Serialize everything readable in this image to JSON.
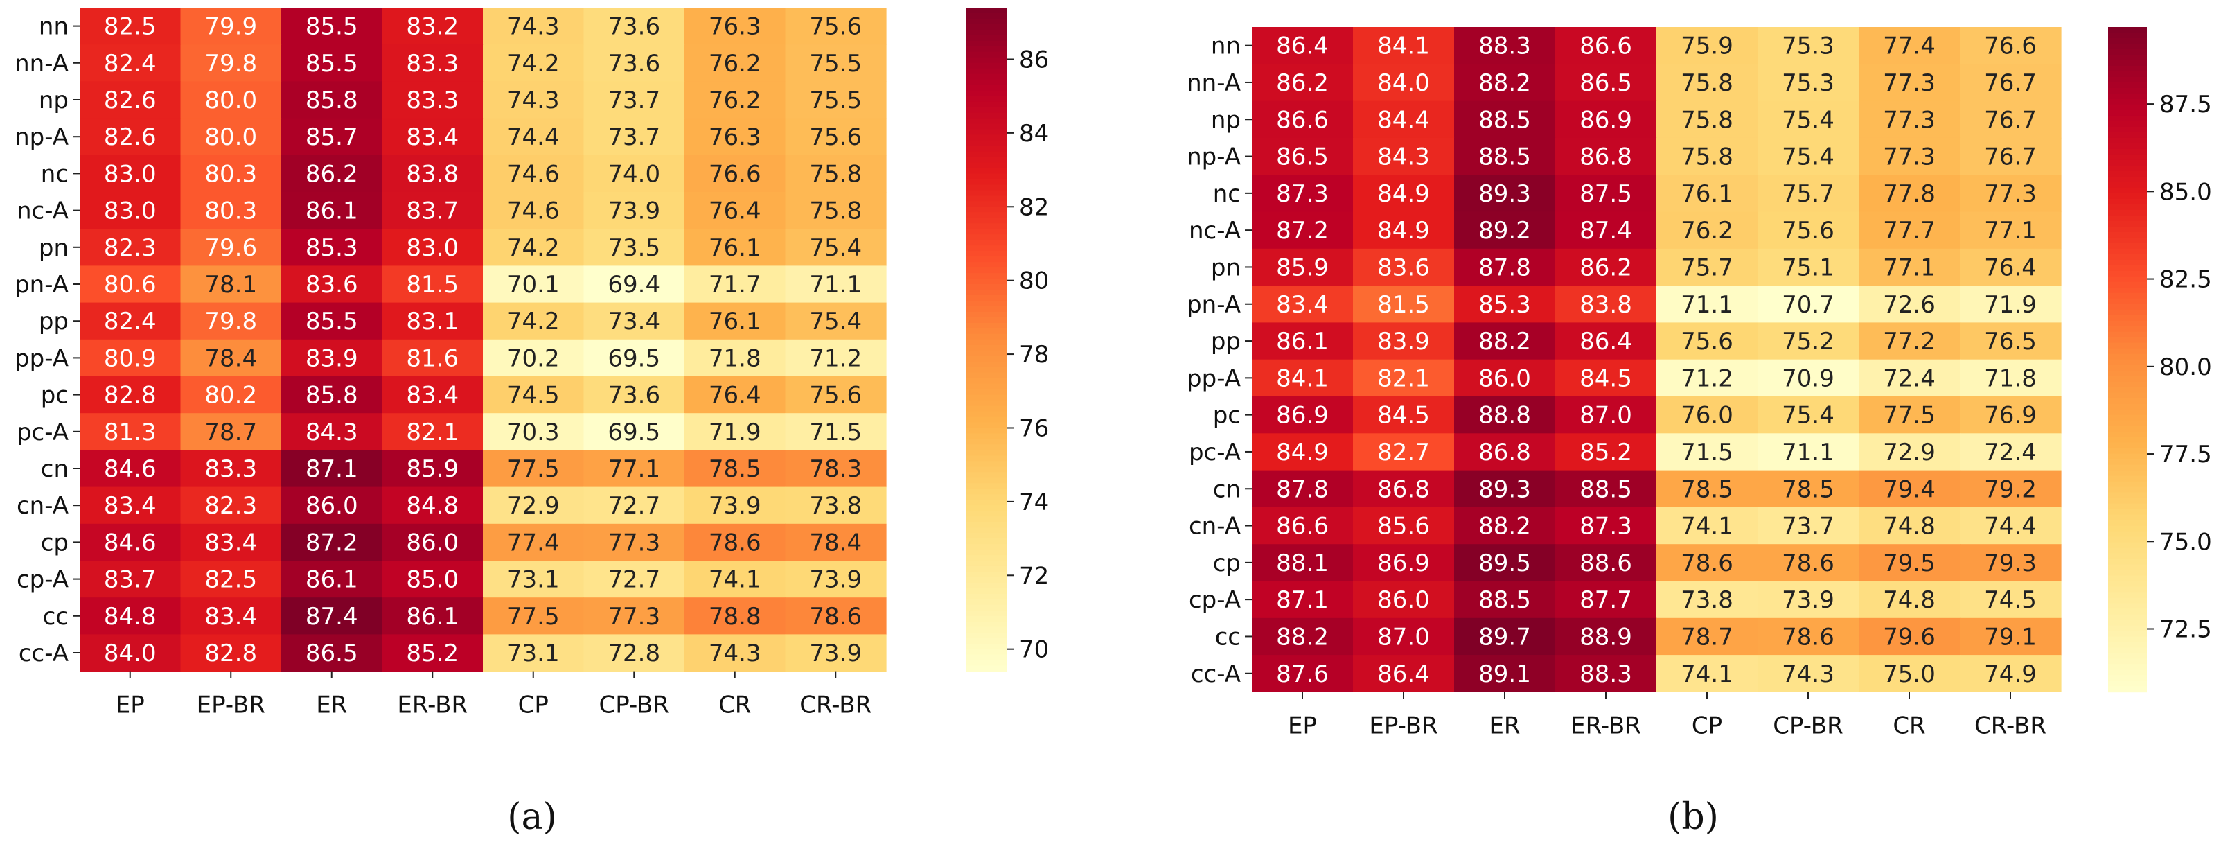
{
  "colors": {
    "scale": [
      "#ffffcc",
      "#ffeda0",
      "#fed976",
      "#feb24c",
      "#fd8d3c",
      "#fc4e2a",
      "#e31a1c",
      "#bd0026",
      "#800026"
    ],
    "text_on_light": "#222222",
    "text_on_dark": "#ffffff"
  },
  "chart_data": [
    {
      "type": "heatmap",
      "panel_label": "(a)",
      "rows": [
        "nn",
        "nn-A",
        "np",
        "np-A",
        "nc",
        "nc-A",
        "pn",
        "pn-A",
        "pp",
        "pp-A",
        "pc",
        "pc-A",
        "cn",
        "cn-A",
        "cp",
        "cp-A",
        "cc",
        "cc-A"
      ],
      "columns": [
        "EP",
        "EP-BR",
        "ER",
        "ER-BR",
        "CP",
        "CP-BR",
        "CR",
        "CR-BR"
      ],
      "values": [
        [
          82.5,
          79.9,
          85.5,
          83.2,
          74.3,
          73.6,
          76.3,
          75.6
        ],
        [
          82.4,
          79.8,
          85.5,
          83.3,
          74.2,
          73.6,
          76.2,
          75.5
        ],
        [
          82.6,
          80.0,
          85.8,
          83.3,
          74.3,
          73.7,
          76.2,
          75.5
        ],
        [
          82.6,
          80.0,
          85.7,
          83.4,
          74.4,
          73.7,
          76.3,
          75.6
        ],
        [
          83.0,
          80.3,
          86.2,
          83.8,
          74.6,
          74.0,
          76.6,
          75.8
        ],
        [
          83.0,
          80.3,
          86.1,
          83.7,
          74.6,
          73.9,
          76.4,
          75.8
        ],
        [
          82.3,
          79.6,
          85.3,
          83.0,
          74.2,
          73.5,
          76.1,
          75.4
        ],
        [
          80.6,
          78.1,
          83.6,
          81.5,
          70.1,
          69.4,
          71.7,
          71.1
        ],
        [
          82.4,
          79.8,
          85.5,
          83.1,
          74.2,
          73.4,
          76.1,
          75.4
        ],
        [
          80.9,
          78.4,
          83.9,
          81.6,
          70.2,
          69.5,
          71.8,
          71.2
        ],
        [
          82.8,
          80.2,
          85.8,
          83.4,
          74.5,
          73.6,
          76.4,
          75.6
        ],
        [
          81.3,
          78.7,
          84.3,
          82.1,
          70.3,
          69.5,
          71.9,
          71.5
        ],
        [
          84.6,
          83.3,
          87.1,
          85.9,
          77.5,
          77.1,
          78.5,
          78.3
        ],
        [
          83.4,
          82.3,
          86.0,
          84.8,
          72.9,
          72.7,
          73.9,
          73.8
        ],
        [
          84.6,
          83.4,
          87.2,
          86.0,
          77.4,
          77.3,
          78.6,
          78.4
        ],
        [
          83.7,
          82.5,
          86.1,
          85.0,
          73.1,
          72.7,
          74.1,
          73.9
        ],
        [
          84.8,
          83.4,
          87.4,
          86.1,
          77.5,
          77.3,
          78.8,
          78.6
        ],
        [
          84.0,
          82.8,
          86.5,
          85.2,
          73.1,
          72.8,
          74.3,
          73.9
        ]
      ],
      "vmin": 69.4,
      "vmax": 87.4,
      "colorbar_ticks": [
        "70",
        "72",
        "74",
        "76",
        "78",
        "80",
        "82",
        "84",
        "86"
      ]
    },
    {
      "type": "heatmap",
      "panel_label": "(b)",
      "rows": [
        "nn",
        "nn-A",
        "np",
        "np-A",
        "nc",
        "nc-A",
        "pn",
        "pn-A",
        "pp",
        "pp-A",
        "pc",
        "pc-A",
        "cn",
        "cn-A",
        "cp",
        "cp-A",
        "cc",
        "cc-A"
      ],
      "columns": [
        "EP",
        "EP-BR",
        "ER",
        "ER-BR",
        "CP",
        "CP-BR",
        "CR",
        "CR-BR"
      ],
      "values": [
        [
          86.4,
          84.1,
          88.3,
          86.6,
          75.9,
          75.3,
          77.4,
          76.6
        ],
        [
          86.2,
          84.0,
          88.2,
          86.5,
          75.8,
          75.3,
          77.3,
          76.7
        ],
        [
          86.6,
          84.4,
          88.5,
          86.9,
          75.8,
          75.4,
          77.3,
          76.7
        ],
        [
          86.5,
          84.3,
          88.5,
          86.8,
          75.8,
          75.4,
          77.3,
          76.7
        ],
        [
          87.3,
          84.9,
          89.3,
          87.5,
          76.1,
          75.7,
          77.8,
          77.3
        ],
        [
          87.2,
          84.9,
          89.2,
          87.4,
          76.2,
          75.6,
          77.7,
          77.1
        ],
        [
          85.9,
          83.6,
          87.8,
          86.2,
          75.7,
          75.1,
          77.1,
          76.4
        ],
        [
          83.4,
          81.5,
          85.3,
          83.8,
          71.1,
          70.7,
          72.6,
          71.9
        ],
        [
          86.1,
          83.9,
          88.2,
          86.4,
          75.6,
          75.2,
          77.2,
          76.5
        ],
        [
          84.1,
          82.1,
          86.0,
          84.5,
          71.2,
          70.9,
          72.4,
          71.8
        ],
        [
          86.9,
          84.5,
          88.8,
          87.0,
          76.0,
          75.4,
          77.5,
          76.9
        ],
        [
          84.9,
          82.7,
          86.8,
          85.2,
          71.5,
          71.1,
          72.9,
          72.4
        ],
        [
          87.8,
          86.8,
          89.3,
          88.5,
          78.5,
          78.5,
          79.4,
          79.2
        ],
        [
          86.6,
          85.6,
          88.2,
          87.3,
          74.1,
          73.7,
          74.8,
          74.4
        ],
        [
          88.1,
          86.9,
          89.5,
          88.6,
          78.6,
          78.6,
          79.5,
          79.3
        ],
        [
          87.1,
          86.0,
          88.5,
          87.7,
          73.8,
          73.9,
          74.8,
          74.5
        ],
        [
          88.2,
          87.0,
          89.7,
          88.9,
          78.7,
          78.6,
          79.6,
          79.1
        ],
        [
          87.6,
          86.4,
          89.1,
          88.3,
          74.1,
          74.3,
          75.0,
          74.9
        ]
      ],
      "vmin": 70.7,
      "vmax": 89.7,
      "colorbar_ticks": [
        "72.5",
        "75.0",
        "77.5",
        "80.0",
        "82.5",
        "85.0",
        "87.5"
      ]
    }
  ]
}
